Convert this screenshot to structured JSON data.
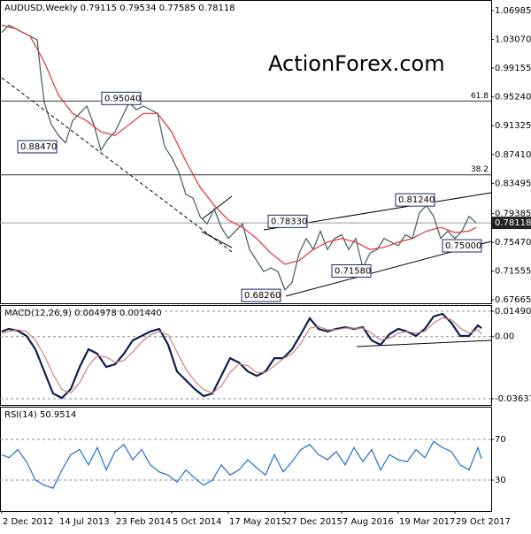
{
  "chart_data": [
    {
      "type": "line",
      "title": "AUDUSD,Weekly  0.79115 0.79534 0.77585 0.78118",
      "watermark": "ActionForex.com",
      "xlim": [
        -1,
        276.5
      ],
      "ylim": [
        0.6719,
        1.0842
      ],
      "yticks": [
        0.67665,
        0.71555,
        {
          "value": 0.7547,
          "label": "0.75470"
        },
        0.79385,
        0.83495,
        {
          "value": 0.8741,
          "label": "0.87410"
        },
        0.91325,
        {
          "value": 0.9524,
          "label": "0.95240"
        },
        0.99155,
        {
          "value": 1.0307,
          "label": "1.03070"
        },
        1.06985
      ],
      "last_price": 0.78118,
      "levels": [
        {
          "label": "61.8",
          "value": 0.9468
        },
        {
          "label": "38.2",
          "value": 0.8465
        }
      ],
      "annotations": [
        {
          "label": "0.95040",
          "value": 0.9504
        },
        {
          "label": "0.88470",
          "value": 0.8847
        },
        {
          "label": "0.78330",
          "value": 0.7833
        },
        {
          "label": "0.81240",
          "value": 0.8124
        },
        {
          "label": "0.75000",
          "value": 0.75
        },
        {
          "label": "0.71580",
          "value": 0.7158
        },
        {
          "label": "0.68260",
          "value": 0.6826
        }
      ],
      "series": [
        {
          "color": "#3d5c5c",
          "x": [
            0,
            4,
            8,
            12,
            16,
            20,
            22,
            24,
            28,
            32,
            36,
            40,
            44,
            48,
            52,
            56,
            60,
            64,
            68,
            72,
            76,
            80,
            84,
            88,
            92,
            96,
            100,
            104,
            108,
            112,
            116,
            120,
            124,
            128,
            132,
            136,
            140,
            144,
            148,
            152,
            156,
            160,
            164,
            168,
            172,
            176,
            180,
            184,
            188,
            192,
            196,
            200,
            204,
            208,
            212,
            216,
            220,
            224,
            228,
            232,
            236,
            240,
            244,
            248,
            252,
            256,
            260,
            264,
            268
          ],
          "values": [
            1.04,
            1.05,
            1.045,
            1.04,
            1.035,
            1.03,
            0.985,
            0.945,
            0.915,
            0.9,
            0.89,
            0.92,
            0.93,
            0.94,
            0.915,
            0.88,
            0.895,
            0.905,
            0.925,
            0.945,
            0.935,
            0.94,
            0.935,
            0.93,
            0.885,
            0.87,
            0.85,
            0.82,
            0.815,
            0.79,
            0.78,
            0.8,
            0.775,
            0.76,
            0.77,
            0.78,
            0.745,
            0.73,
            0.715,
            0.72,
            0.715,
            0.69,
            0.7,
            0.74,
            0.76,
            0.745,
            0.77,
            0.745,
            0.76,
            0.765,
            0.745,
            0.76,
            0.72,
            0.74,
            0.745,
            0.76,
            0.755,
            0.75,
            0.765,
            0.76,
            0.795,
            0.805,
            0.79,
            0.76,
            0.77,
            0.76,
            0.77,
            0.79,
            0.781
          ]
        },
        {
          "color": "#e03030",
          "x": [
            0,
            8,
            16,
            24,
            32,
            40,
            48,
            56,
            64,
            72,
            80,
            88,
            96,
            104,
            112,
            120,
            128,
            136,
            144,
            152,
            160,
            168,
            176,
            184,
            192,
            200,
            208,
            216,
            224,
            232,
            240,
            248,
            256,
            264,
            268
          ],
          "values": [
            1.05,
            1.045,
            1.035,
            1.0,
            0.955,
            0.93,
            0.92,
            0.905,
            0.9,
            0.915,
            0.93,
            0.93,
            0.905,
            0.865,
            0.83,
            0.805,
            0.785,
            0.775,
            0.76,
            0.74,
            0.725,
            0.73,
            0.745,
            0.755,
            0.76,
            0.755,
            0.745,
            0.748,
            0.755,
            0.76,
            0.77,
            0.775,
            0.768,
            0.77,
            0.775
          ]
        }
      ]
    },
    {
      "type": "line",
      "title": "MACD(12,26,9) 0.004978 0.001440",
      "xlim": [
        -1,
        276.5
      ],
      "ylim": [
        -0.04,
        0.0185
      ],
      "yticks": [
        -0.036374,
        {
          "value": 0,
          "label": "0.00"
        },
        0.014902
      ],
      "x": [
        0,
        4,
        9,
        14,
        19,
        24,
        29,
        34,
        39,
        44,
        49,
        54,
        59,
        64,
        69,
        74,
        79,
        84,
        89,
        94,
        99,
        104,
        109,
        114,
        119,
        124,
        129,
        134,
        139,
        144,
        149,
        154,
        159,
        164,
        169,
        174,
        179,
        184,
        189,
        194,
        199,
        204,
        209,
        214,
        219,
        224,
        229,
        234,
        239,
        244,
        249,
        254,
        259,
        264,
        269,
        271
      ],
      "series": [
        {
          "color": "#0d1f4f",
          "values": [
            0.003,
            0.0045,
            0.0035,
            0.0004,
            -0.0074,
            -0.0204,
            -0.0333,
            -0.0359,
            -0.0307,
            -0.0178,
            -0.0074,
            -0.01,
            -0.0178,
            -0.0162,
            -0.01,
            -0.0022,
            0.0004,
            0.003,
            0.0045,
            -0.0048,
            -0.0204,
            -0.0255,
            -0.0307,
            -0.0348,
            -0.0333,
            -0.023,
            -0.0126,
            -0.0152,
            -0.0204,
            -0.023,
            -0.0204,
            -0.0126,
            -0.0126,
            -0.0074,
            0.0014,
            0.0107,
            0.0045,
            0.003,
            0.0045,
            0.0055,
            0.0045,
            0.0055,
            -0.0022,
            -0.0048,
            0.0014,
            0.0045,
            0.003,
            0.0004,
            0.0045,
            0.0118,
            0.0133,
            0.0081,
            0.0004,
            0.0004,
            0.0066,
            0.005
          ]
        },
        {
          "color": "#d08080",
          "values": [
            0.002,
            0.003,
            0.004,
            0.003,
            -0.002,
            -0.011,
            -0.022,
            -0.031,
            -0.033,
            -0.027,
            -0.017,
            -0.011,
            -0.012,
            -0.015,
            -0.014,
            -0.009,
            -0.003,
            0.001,
            0.003,
            0.001,
            -0.009,
            -0.019,
            -0.026,
            -0.031,
            -0.033,
            -0.029,
            -0.021,
            -0.016,
            -0.017,
            -0.021,
            -0.021,
            -0.017,
            -0.013,
            -0.01,
            -0.004,
            0.005,
            0.006,
            0.004,
            0.004,
            0.005,
            0.005,
            0.005,
            0.002,
            -0.002,
            -0.001,
            0.002,
            0.003,
            0.002,
            0.003,
            0.008,
            0.011,
            0.01,
            0.005,
            0.002,
            0.004,
            0.0014
          ]
        }
      ]
    },
    {
      "type": "line",
      "title": "RSI(14) 50.9514",
      "xlim": [
        -1,
        276.5
      ],
      "ylim": [
        -0.4,
        102.2
      ],
      "yticks": [
        30,
        70
      ],
      "x": [
        0,
        4,
        9,
        14,
        19,
        24,
        29,
        34,
        39,
        44,
        49,
        54,
        59,
        64,
        69,
        74,
        79,
        84,
        89,
        94,
        99,
        104,
        109,
        114,
        119,
        124,
        129,
        134,
        139,
        144,
        149,
        154,
        159,
        164,
        169,
        174,
        179,
        184,
        189,
        194,
        199,
        204,
        209,
        214,
        219,
        224,
        229,
        234,
        239,
        244,
        249,
        254,
        259,
        264,
        269,
        271
      ],
      "xticks": [
        {
          "value": 0,
          "label": "2 Dec 2012"
        },
        {
          "value": 32,
          "label": "14 Jul 2013"
        },
        {
          "value": 64,
          "label": "23 Feb 2014"
        },
        {
          "value": 96,
          "label": "5 Oct 2014"
        },
        {
          "value": 128,
          "label": "17 May 2015"
        },
        {
          "value": 160,
          "label": "27 Dec 2015"
        },
        {
          "value": 192,
          "label": "7 Aug 2016"
        },
        {
          "value": 224,
          "label": "19 Mar 2017"
        },
        {
          "value": 256,
          "label": "29 Oct 2017"
        }
      ],
      "series": [
        {
          "color": "#1e6fd0",
          "values": [
            55,
            52,
            60,
            48,
            30,
            25,
            22,
            40,
            55,
            60,
            45,
            62,
            40,
            58,
            65,
            50,
            60,
            45,
            38,
            35,
            28,
            40,
            32,
            25,
            30,
            45,
            35,
            40,
            50,
            42,
            35,
            55,
            38,
            48,
            60,
            65,
            55,
            50,
            58,
            45,
            62,
            48,
            60,
            40,
            55,
            50,
            48,
            60,
            52,
            68,
            62,
            58,
            45,
            40,
            62,
            50.9514
          ]
        }
      ]
    }
  ]
}
